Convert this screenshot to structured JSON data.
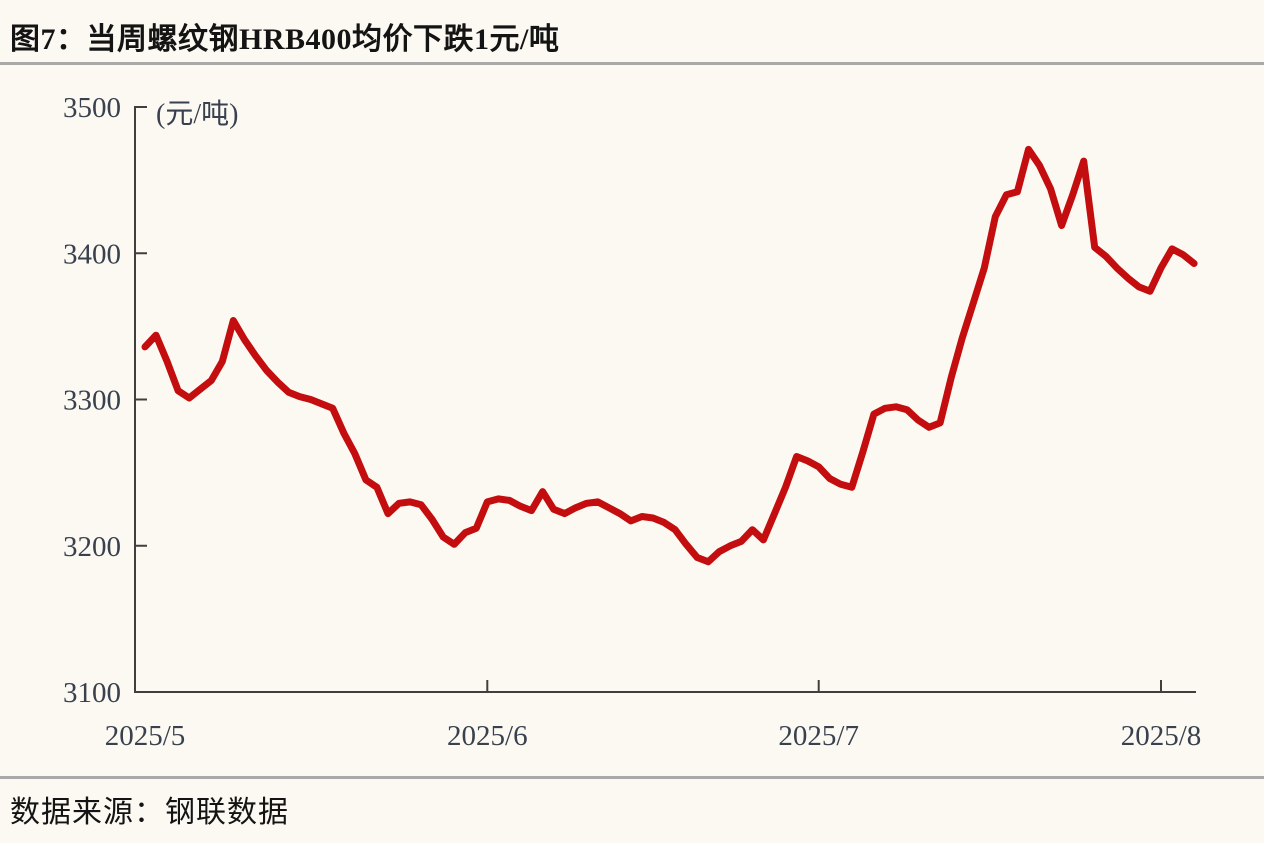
{
  "figure": {
    "title": "图7：当周螺纹钢HRB400均价下跌1元/吨",
    "source": "数据来源：钢联数据"
  },
  "colors": {
    "background": "#fbf9f2",
    "line": "#c30d0f",
    "axis": "#3f3f3f",
    "tick_label": "#39404e",
    "title_text": "#141414",
    "divider": "#a9a9a9"
  },
  "chart_data": {
    "type": "line",
    "title": "图7：当周螺纹钢HRB400均价下跌1元/吨",
    "unit_label": "(元/吨)",
    "xlabel": "",
    "ylabel": "",
    "ylim": [
      3100,
      3500
    ],
    "y_ticks": [
      3500,
      3400,
      3300,
      3200,
      3100
    ],
    "x_ticks": [
      {
        "day_offset": 0,
        "label": "2025/5",
        "tick_mark": false
      },
      {
        "day_offset": 31,
        "label": "2025/6",
        "tick_mark": true
      },
      {
        "day_offset": 61,
        "label": "2025/7",
        "tick_mark": true
      },
      {
        "day_offset": 92,
        "label": "2025/8",
        "tick_mark": true
      }
    ],
    "x_encoding": "daily index; day 0 at 2025/5 tick, day 92 at 2025/8 tick",
    "grid": false,
    "legend": "none",
    "series": [
      {
        "name": "螺纹钢HRB400均价",
        "color": "#c30d0f",
        "values": [
          3336,
          3344,
          3326,
          3306,
          3301,
          3307,
          3313,
          3326,
          3354,
          3341,
          3330,
          3320,
          3312,
          3305,
          3302,
          3300,
          3297,
          3294,
          3277,
          3263,
          3245,
          3240,
          3222,
          3229,
          3230,
          3228,
          3218,
          3206,
          3201,
          3209,
          3212,
          3230,
          3232,
          3231,
          3227,
          3224,
          3237,
          3225,
          3222,
          3226,
          3229,
          3230,
          3226,
          3222,
          3217,
          3220,
          3219,
          3216,
          3211,
          3201,
          3192,
          3189,
          3196,
          3200,
          3203,
          3211,
          3204,
          3222,
          3240,
          3261,
          3258,
          3254,
          3246,
          3242,
          3240,
          3264,
          3290,
          3294,
          3295,
          3293,
          3286,
          3281,
          3284,
          3315,
          3342,
          3366,
          3390,
          3425,
          3440,
          3442,
          3471,
          3460,
          3444,
          3419,
          3440,
          3463,
          3404,
          3398,
          3390,
          3383,
          3377,
          3374,
          3390,
          3403,
          3399,
          3393
        ]
      }
    ]
  }
}
